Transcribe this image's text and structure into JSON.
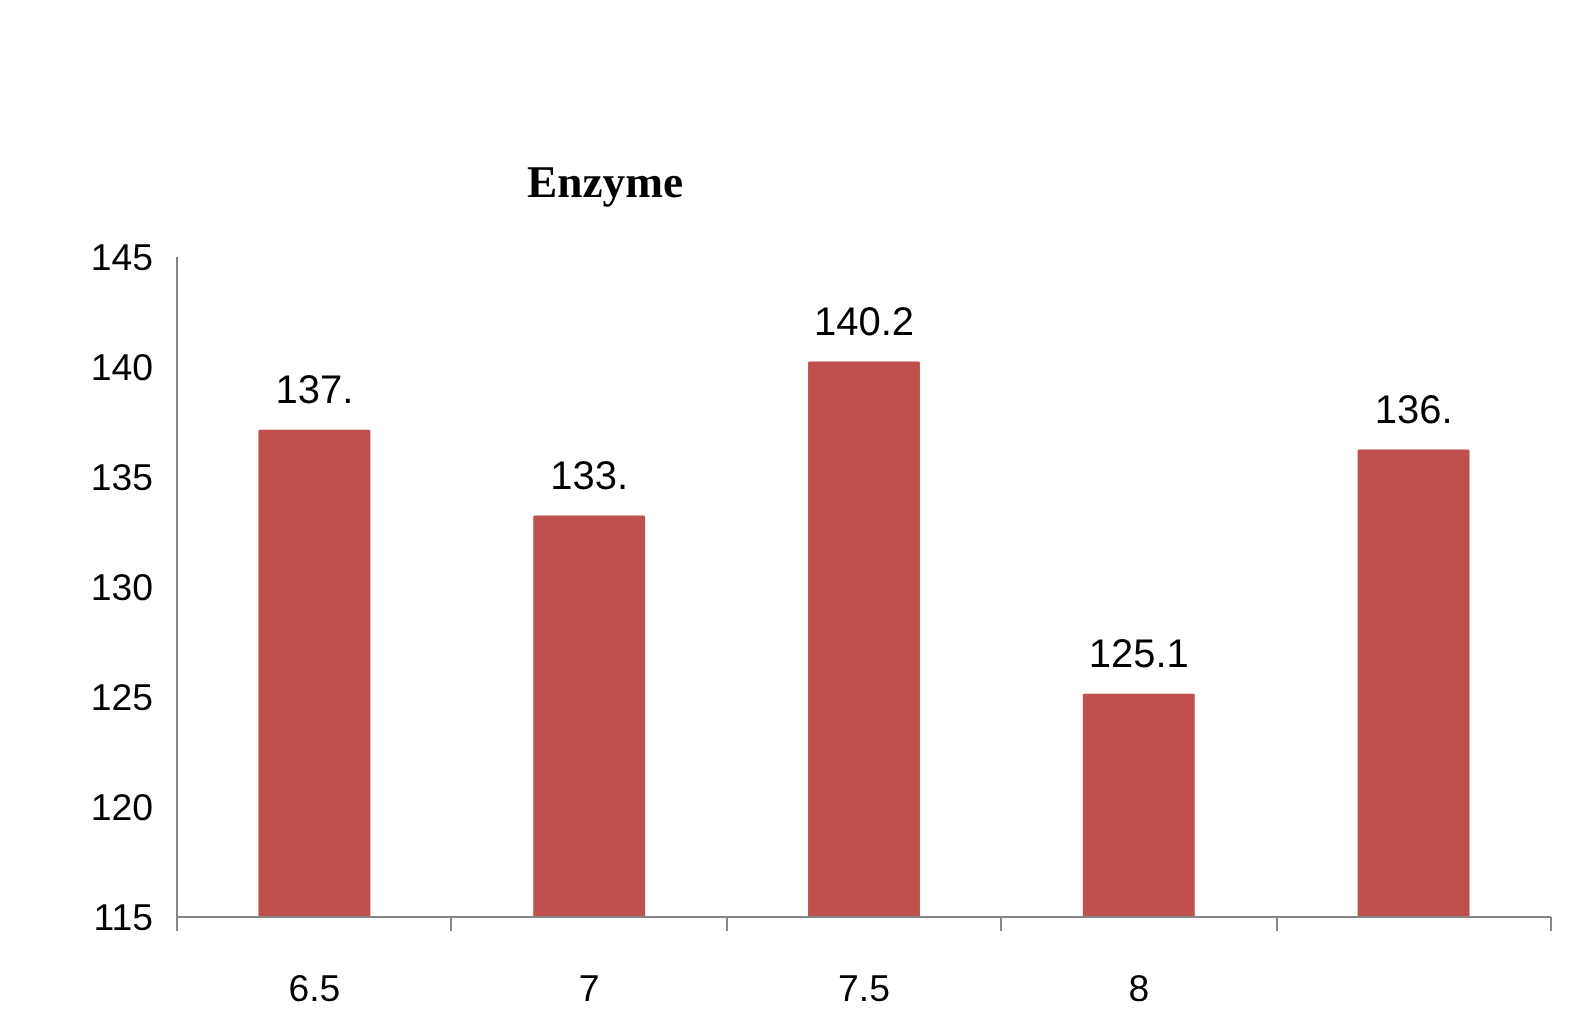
{
  "chart_data": {
    "type": "bar",
    "title": "Enzyme",
    "categories": [
      "6.5",
      "7",
      "7.5",
      "8",
      null
    ],
    "values": [
      137.1,
      133.2,
      140.2,
      125.1,
      136.2
    ],
    "value_labels": [
      "137.",
      "133.",
      "140.2",
      "125.1",
      "136."
    ],
    "color": "#c0504d",
    "ylim": [
      115,
      145
    ],
    "yticks": [
      115,
      120,
      125,
      130,
      135,
      140,
      145
    ],
    "grid": false
  }
}
